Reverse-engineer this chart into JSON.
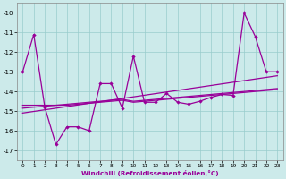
{
  "xlabel": "Windchill (Refroidissement éolien,°C)",
  "xlim": [
    -0.5,
    23.5
  ],
  "ylim": [
    -17.5,
    -9.5
  ],
  "yticks": [
    -17,
    -16,
    -15,
    -14,
    -13,
    -12,
    -11,
    -10
  ],
  "xticks": [
    0,
    1,
    2,
    3,
    4,
    5,
    6,
    7,
    8,
    9,
    10,
    11,
    12,
    13,
    14,
    15,
    16,
    17,
    18,
    19,
    20,
    21,
    22,
    23
  ],
  "background_color": "#cceaea",
  "grid_color": "#99cccc",
  "line_color": "#990099",
  "series_main": [
    -13.0,
    -11.1,
    -14.8,
    -16.7,
    -15.8,
    -15.8,
    -16.0,
    -13.6,
    -13.6,
    -14.85,
    -12.2,
    -14.55,
    -14.55,
    -14.1,
    -14.55,
    -14.65,
    -14.5,
    -14.3,
    -14.15,
    -14.2,
    -10.0,
    -11.2,
    -13.0,
    -13.0
  ],
  "series_trend": [
    [
      0,
      23
    ],
    [
      -15.1,
      -13.2
    ]
  ],
  "series_flat1": [
    -14.7,
    -14.7,
    -14.7,
    -14.7,
    -14.7,
    -14.65,
    -14.6,
    -14.55,
    -14.5,
    -14.45,
    -14.55,
    -14.5,
    -14.45,
    -14.4,
    -14.35,
    -14.3,
    -14.25,
    -14.2,
    -14.15,
    -14.1,
    -14.05,
    -14.0,
    -13.95,
    -13.9
  ],
  "series_flat2": [
    -14.85,
    -14.8,
    -14.75,
    -14.7,
    -14.65,
    -14.6,
    -14.55,
    -14.5,
    -14.45,
    -14.4,
    -14.5,
    -14.45,
    -14.4,
    -14.35,
    -14.3,
    -14.25,
    -14.2,
    -14.15,
    -14.1,
    -14.05,
    -14.0,
    -13.95,
    -13.9,
    -13.85
  ]
}
